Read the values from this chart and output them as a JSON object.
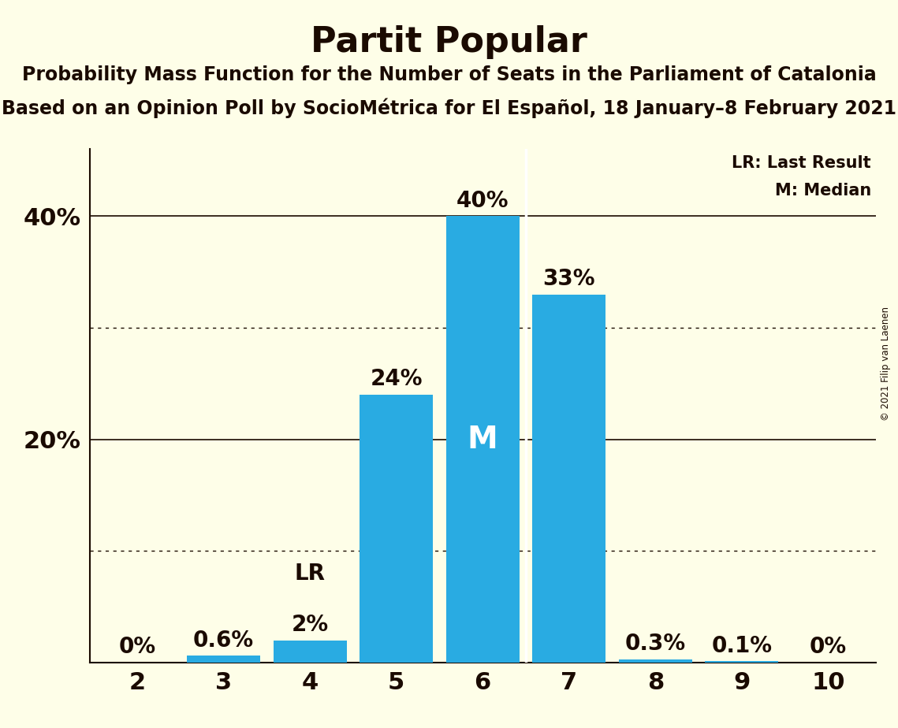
{
  "title": "Partit Popular",
  "subtitle1": "Probability Mass Function for the Number of Seats in the Parliament of Catalonia",
  "subtitle2": "Based on an Opinion Poll by SocioMétrica for El Español, 18 January–8 February 2021",
  "copyright": "© 2021 Filip van Laenen",
  "categories": [
    2,
    3,
    4,
    5,
    6,
    7,
    8,
    9,
    10
  ],
  "values": [
    0.0,
    0.6,
    2.0,
    24.0,
    40.0,
    33.0,
    0.3,
    0.1,
    0.0
  ],
  "bar_labels": [
    "0%",
    "0.6%",
    "2%",
    "24%",
    "40%",
    "33%",
    "0.3%",
    "0.1%",
    "0%"
  ],
  "bar_color": "#29abe2",
  "background_color": "#fefee8",
  "text_color": "#1a0a00",
  "title_fontsize": 32,
  "subtitle_fontsize": 17,
  "bar_label_fontsize": 20,
  "axis_label_fontsize": 22,
  "ytick_labels": [
    "20%",
    "40%"
  ],
  "ytick_values": [
    20,
    40
  ],
  "ylim": [
    0,
    46
  ],
  "lr_bar_index": 2,
  "median_bar_index": 4,
  "legend_lr": "LR: Last Result",
  "legend_m": "M: Median",
  "dotted_lines": [
    10,
    30
  ],
  "solid_lines": [
    20,
    40
  ],
  "median_line_x": 6.5,
  "lr_extra_label": "LR"
}
